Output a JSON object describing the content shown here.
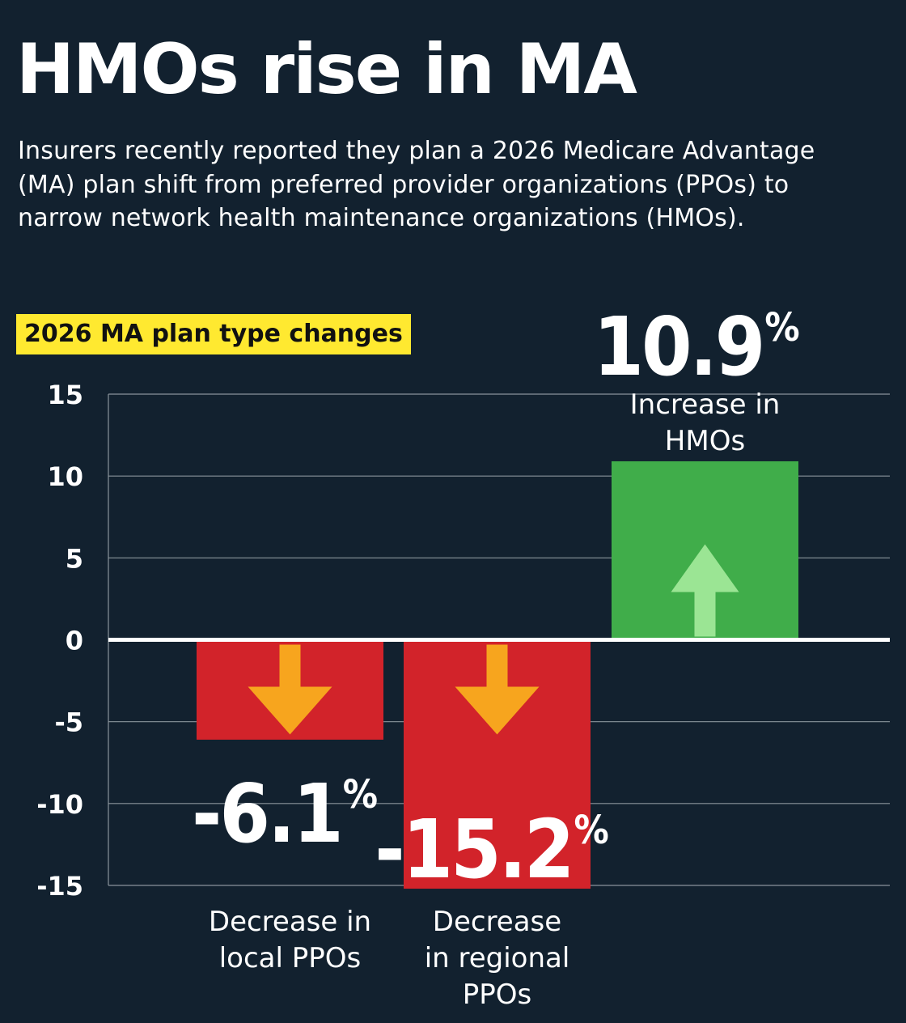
{
  "title": "HMOs rise in MA",
  "subtitle": "Insurers recently reported they plan a 2026 Medicare Advantage (MA) plan shift from preferred provider organizations (PPOs) to narrow network health maintenance organizations (HMOs).",
  "chart_label": "2026 MA plan type changes",
  "chart_data": {
    "type": "bar",
    "categories": [
      "Decrease in local PPOs",
      "Decrease in regional PPOs",
      "Increase in HMOs"
    ],
    "category_label_lines": [
      [
        "Decrease in",
        "local PPOs"
      ],
      [
        "Decrease",
        "in regional",
        "PPOs"
      ],
      [
        "Increase in",
        "HMOs"
      ]
    ],
    "values": [
      -6.1,
      -15.2,
      10.9
    ],
    "value_labels": [
      "-6.1",
      "-15.2",
      "10.9"
    ],
    "value_unit": "%",
    "ylim": [
      -15,
      15
    ],
    "yticks": [
      15,
      10,
      5,
      0,
      -5,
      -10,
      -15
    ],
    "ytick_labels": [
      "15",
      "10",
      "5",
      "0",
      "-5",
      "-10",
      "-15"
    ],
    "grid": true,
    "colors": {
      "decrease_bar": "#d2232a",
      "increase_bar": "#40ad4a",
      "down_arrow": "#f7a51e",
      "up_arrow": "#9be594",
      "gridline": "#8a949c",
      "zero_line": "#ffffff"
    },
    "arrow_icons": [
      "down-arrow-icon",
      "down-arrow-icon",
      "up-arrow-icon"
    ]
  }
}
